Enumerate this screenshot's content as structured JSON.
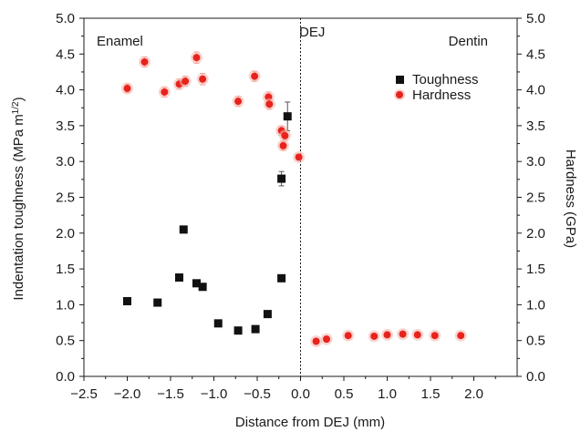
{
  "chart_data": {
    "type": "scatter",
    "xlabel": "Distance from  DEJ (mm)",
    "ylabel_left_base": "Indentation toughness (MPa m",
    "ylabel_left_exp": "1/2",
    "ylabel_left_close": ")",
    "ylabel_right": "Hardness (GPa)",
    "xlim": [
      -2.5,
      2.5
    ],
    "ylim": [
      0,
      5
    ],
    "x_ticks": [
      -2.5,
      -2.0,
      -1.5,
      -1.0,
      -0.5,
      0.0,
      0.5,
      1.0,
      1.5,
      2.0
    ],
    "x_tick_labels": [
      "−2.5",
      "−2.0",
      "−1.5",
      "−1.0",
      "−0.5",
      "0.0",
      "0.5",
      "1.0",
      "1.5",
      "2.0"
    ],
    "y_ticks": [
      0,
      0.5,
      1,
      1.5,
      2,
      2.5,
      3,
      3.5,
      4,
      4.5,
      5
    ],
    "y_tick_labels": [
      "0.0",
      "0.5",
      "1.0",
      "1.5",
      "2.0",
      "2.5",
      "3.0",
      "3.5",
      "4.0",
      "4.5",
      "5.0"
    ],
    "grid": false,
    "dej_line_x": 0,
    "annotations": {
      "enamel": "Enamel",
      "dej": "DEJ",
      "dentin": "Dentin"
    },
    "legend_position": "top-right",
    "series": [
      {
        "name": "Toughness",
        "marker": "square",
        "color": "#111111",
        "x": [
          -2.0,
          -1.65,
          -1.4,
          -1.35,
          -1.2,
          -1.13,
          -0.95,
          -0.72,
          -0.52,
          -0.38,
          -0.22,
          -0.22,
          -0.15
        ],
        "y": [
          1.05,
          1.03,
          1.38,
          2.05,
          1.3,
          1.25,
          0.74,
          0.64,
          0.66,
          0.87,
          1.37,
          2.76,
          3.63
        ],
        "err": [
          0,
          0,
          0,
          0,
          0,
          0,
          0,
          0,
          0,
          0,
          0,
          0.1,
          0.2
        ]
      },
      {
        "name": "Hardness",
        "marker": "circle",
        "color": "#e8231d",
        "x": [
          -2.0,
          -1.8,
          -1.57,
          -1.4,
          -1.33,
          -1.2,
          -1.13,
          -0.72,
          -0.53,
          -0.37,
          -0.36,
          -0.22,
          -0.2,
          -0.18,
          -0.02,
          0.18,
          0.3,
          0.55,
          0.85,
          1.0,
          1.18,
          1.35,
          1.55,
          1.85
        ],
        "y": [
          4.02,
          4.39,
          3.97,
          4.08,
          4.12,
          4.45,
          4.15,
          3.84,
          4.19,
          3.9,
          3.8,
          3.43,
          3.22,
          3.36,
          3.06,
          0.49,
          0.52,
          0.57,
          0.56,
          0.58,
          0.59,
          0.58,
          0.57,
          0.57
        ],
        "err": [
          0.06,
          0.07,
          0.07,
          0.07,
          0.07,
          0.08,
          0.08,
          0.07,
          0.07,
          0.07,
          0.07,
          0.06,
          0.06,
          0.06,
          0.04,
          0.03,
          0.03,
          0.03,
          0.03,
          0.03,
          0.03,
          0.03,
          0.03,
          0.03
        ]
      }
    ]
  }
}
